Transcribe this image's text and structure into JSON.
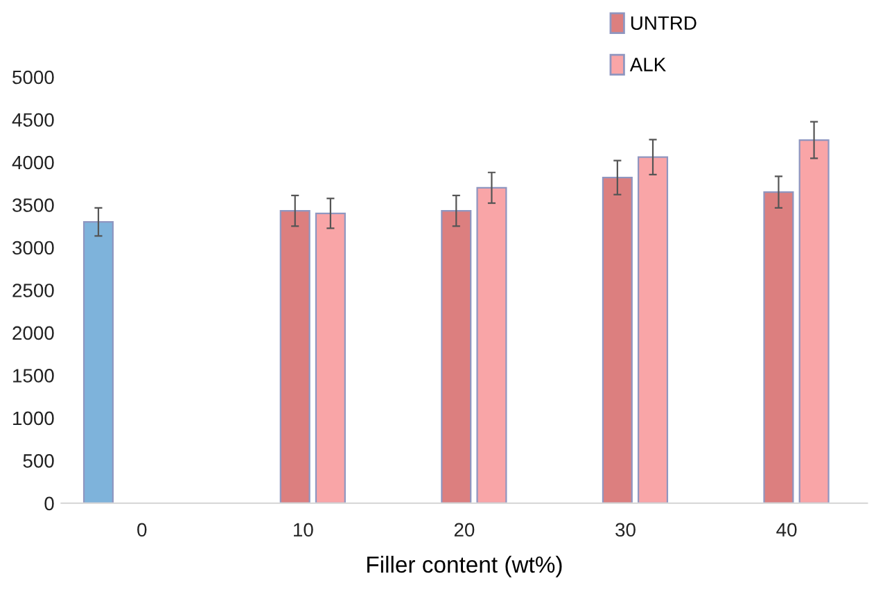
{
  "chart_data": {
    "type": "bar",
    "xlabel": "Filler content (wt%)",
    "categories": [
      "0",
      "10",
      "20",
      "30",
      "40"
    ],
    "series": [
      {
        "color": "#7eb3db",
        "values": [
          3300,
          null,
          null,
          null,
          null
        ],
        "errors": [
          165,
          null,
          null,
          null,
          null
        ]
      },
      {
        "name": "UNTRD",
        "color": "#dc7f7f",
        "values": [
          null,
          3430,
          3430,
          3820,
          3650
        ],
        "errors": [
          null,
          180,
          180,
          200,
          185
        ]
      },
      {
        "name": "ALK",
        "color": "#f9a5a7",
        "values": [
          null,
          3400,
          3700,
          4060,
          4260
        ],
        "errors": [
          null,
          175,
          180,
          205,
          215
        ]
      }
    ],
    "ylim": [
      0,
      5000
    ],
    "yticks": [
      0,
      500,
      1000,
      1500,
      2000,
      2500,
      3000,
      3500,
      4000,
      4500,
      5000
    ],
    "grid": false,
    "legend": "top"
  }
}
